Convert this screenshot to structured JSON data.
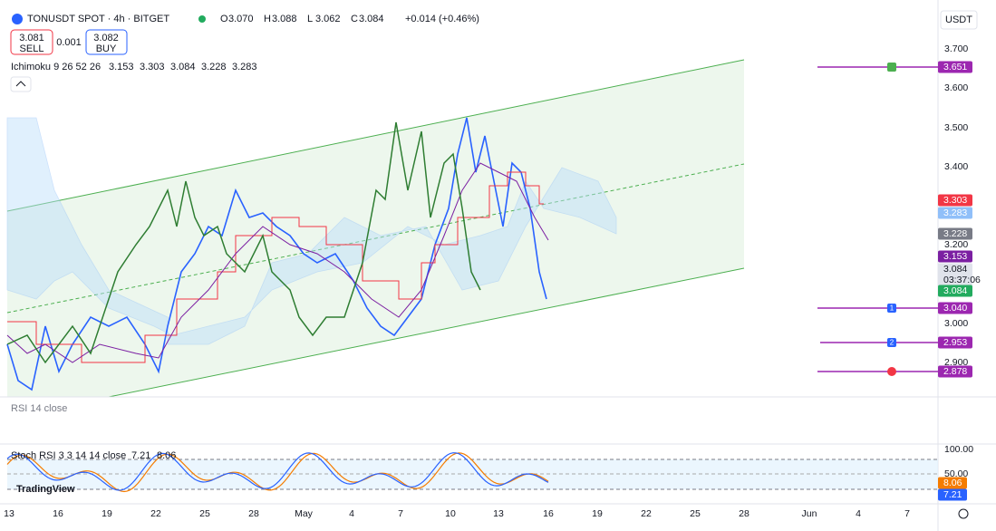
{
  "header": {
    "symbol": "TONUSDT SPOT · 4h · BITGET",
    "ohlc": [
      {
        "key": "O",
        "value": "3.070"
      },
      {
        "key": "H",
        "value": "3.088"
      },
      {
        "key": "L",
        "value": "3.062"
      },
      {
        "key": "C",
        "value": "3.084"
      }
    ],
    "change": "+0.014 (+0.46%)"
  },
  "trade": {
    "sell_price": "3.081",
    "sell": "SELL",
    "spread": "0.001",
    "buy_price": "3.082",
    "buy": "BUY"
  },
  "currency": "USDT",
  "indicators": {
    "ichimoku": {
      "name": "Ichimoku 9 26 52 26",
      "values": [
        "3.153",
        "3.303",
        "3.084",
        "3.228",
        "3.283"
      ]
    },
    "rsi": "RSI 14 close",
    "stoch": {
      "name": "Stoch RSI 3 3 14 14 close",
      "values": [
        "7.21",
        "8.06"
      ]
    }
  },
  "price_axis": [
    "3.700",
    "3.600",
    "3.500",
    "3.400",
    "3.200",
    "3.000",
    "2.900"
  ],
  "price_tags": [
    {
      "label": "3.651",
      "color": "#9c27b0"
    },
    {
      "label": "3.303",
      "color": "#f23645"
    },
    {
      "label": "3.283",
      "color": "#90bff9"
    },
    {
      "label": "3.228",
      "color": "#787b86"
    },
    {
      "label": "3.153",
      "color": "#7b1fa2"
    },
    {
      "label": "3.084",
      "color": "#e0e3eb"
    },
    {
      "label": "3.084",
      "color": "#22ab5e"
    },
    {
      "label": "3.040",
      "color": "#9c27b0"
    },
    {
      "label": "2.953",
      "color": "#9c27b0"
    },
    {
      "label": "2.878",
      "color": "#9c27b0"
    }
  ],
  "countdown": "03:37:06",
  "order_markers": [
    "1",
    "2"
  ],
  "stoch_axis": [
    "100.00",
    "50.00"
  ],
  "stoch_tags": [
    {
      "label": "8.06",
      "color": "#f57c00"
    },
    {
      "label": "7.21",
      "color": "#2962ff"
    }
  ],
  "time_axis": [
    "13",
    "16",
    "19",
    "22",
    "25",
    "28",
    "May",
    "4",
    "7",
    "10",
    "13",
    "16",
    "19",
    "22",
    "25",
    "28",
    "Jun",
    "4",
    "7"
  ],
  "logo": "TradingView"
}
